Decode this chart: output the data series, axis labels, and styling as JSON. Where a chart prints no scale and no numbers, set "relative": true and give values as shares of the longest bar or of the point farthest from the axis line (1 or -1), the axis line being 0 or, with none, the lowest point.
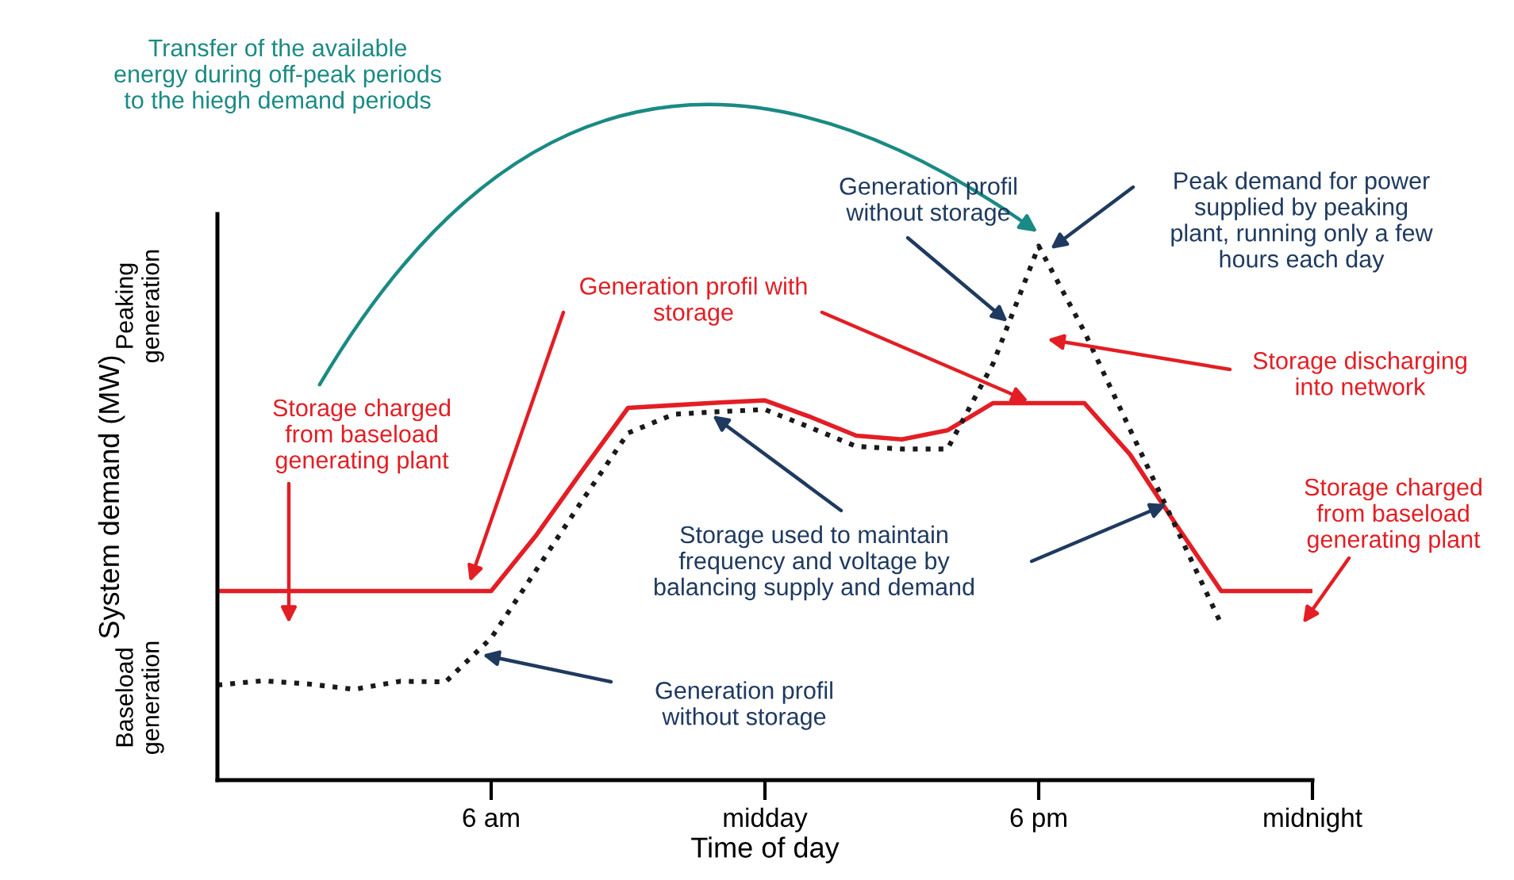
{
  "chart_data": {
    "type": "line",
    "relative": true,
    "xlabel": "Time of day",
    "ylabel": "System demand (MW)",
    "categories": [
      null,
      null,
      null,
      null,
      null,
      null,
      "6 am",
      null,
      null,
      null,
      null,
      null,
      "midday",
      null,
      null,
      null,
      null,
      null,
      "6 pm",
      null,
      null,
      null,
      null,
      null,
      "midnight"
    ],
    "grid": false,
    "legend": false,
    "series": [
      {
        "color": "#e31e24",
        "line_style": "solid",
        "values": [
          0.354,
          0.354,
          0.354,
          0.354,
          0.354,
          0.354,
          0.354,
          0.46,
          0.58,
          0.697,
          0.702,
          0.707,
          0.711,
          0.68,
          0.645,
          0.638,
          0.655,
          0.706,
          0.706,
          0.706,
          0.61,
          0.48,
          0.354,
          0.354,
          0.354
        ]
      },
      {
        "color": "#1a1a1a",
        "line_style": "dotted",
        "values": [
          0.178,
          0.186,
          0.18,
          0.17,
          0.185,
          0.184,
          0.266,
          0.395,
          0.524,
          0.65,
          0.685,
          0.69,
          0.694,
          0.66,
          0.625,
          0.62,
          0.62,
          0.78,
          1.0,
          0.84,
          0.657,
          0.475,
          0.292,
          null,
          null
        ]
      }
    ],
    "annotations": [
      "Transfer of the available\nenergy during off-peak periods\nto the hiegh demand periods",
      "Generation profil\nwithout storage",
      "Peak demand for power\nsupplied by peaking\nplant, running only a few\nhours each day",
      "Generation profil with\nstorage",
      "Storage discharging\ninto network",
      "Storage charged\nfrom baseload\ngenerating plant",
      "Storage used to maintain\nfrequency and voltage by\nbalancing supply and demand",
      "Generation profil\nwithout storage",
      "Storage charged\nfrom baseload\ngenerating plant",
      "Peaking\ngeneration",
      "Baseload\ngeneration"
    ]
  }
}
